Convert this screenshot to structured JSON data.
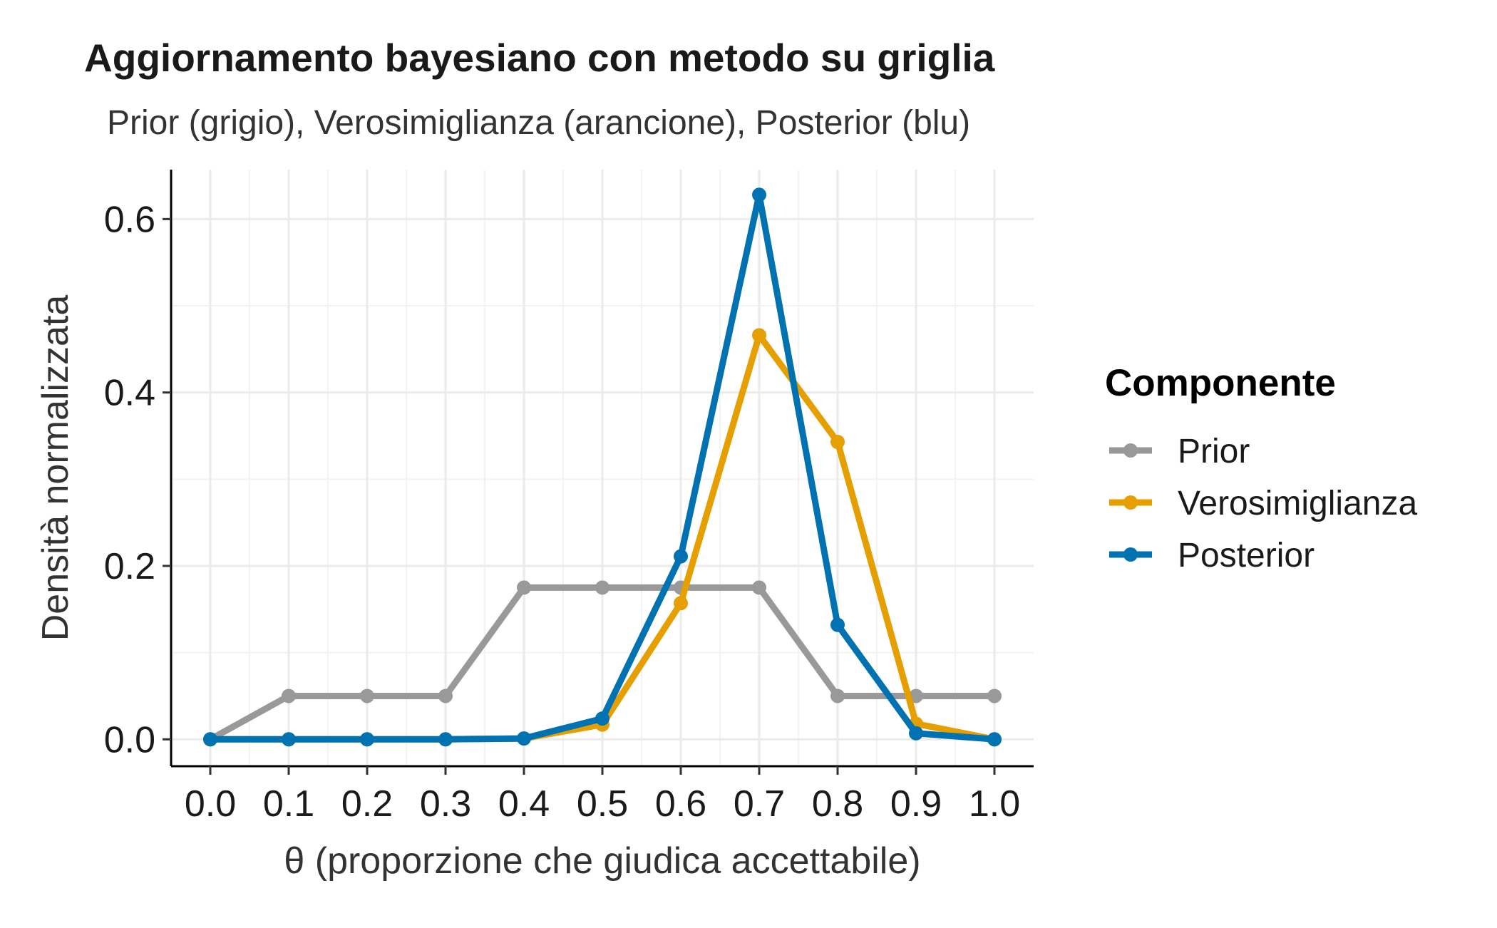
{
  "chart_data": {
    "type": "line",
    "title": "Aggiornamento bayesiano con metodo su griglia",
    "subtitle": "Prior (grigio), Verosimiglianza (arancione), Posterior (blu)",
    "xlabel": "θ (proporzione che giudica accettabile)",
    "ylabel": "Densità normalizzata",
    "x": [
      0.0,
      0.1,
      0.2,
      0.3,
      0.4,
      0.5,
      0.6,
      0.7,
      0.8,
      0.9,
      1.0
    ],
    "x_tick_labels": [
      "0.0",
      "0.1",
      "0.2",
      "0.3",
      "0.4",
      "0.5",
      "0.6",
      "0.7",
      "0.8",
      "0.9",
      "1.0"
    ],
    "y_ticks": [
      0.0,
      0.2,
      0.4,
      0.6
    ],
    "y_tick_labels": [
      "0.0",
      "0.2",
      "0.4",
      "0.6"
    ],
    "xlim": [
      -0.05,
      1.05
    ],
    "ylim": [
      -0.031,
      0.657
    ],
    "grid": true,
    "legend": {
      "title": "Componente",
      "placement": "right"
    },
    "series": [
      {
        "name": "Prior",
        "color": "#999999",
        "values": [
          0.0,
          0.05,
          0.05,
          0.05,
          0.175,
          0.175,
          0.175,
          0.175,
          0.05,
          0.05,
          0.05
        ]
      },
      {
        "name": "Verosimiglianza",
        "color": "#E69F00",
        "values": [
          0.0,
          0.0,
          0.0,
          0.0,
          0.001,
          0.017,
          0.157,
          0.466,
          0.343,
          0.018,
          0.0
        ]
      },
      {
        "name": "Posterior",
        "color": "#0072B2",
        "values": [
          0.0,
          0.0,
          0.0,
          0.0,
          0.001,
          0.024,
          0.211,
          0.628,
          0.132,
          0.007,
          0.0
        ]
      }
    ]
  }
}
